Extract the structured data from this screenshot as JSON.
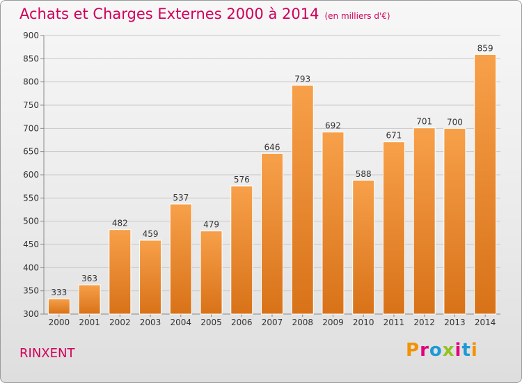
{
  "header": {
    "title": "Achats et Charges Externes 2000 à 2014",
    "subtitle": "(en milliers d'€)"
  },
  "commune": "RINXENT",
  "logo": {
    "text": "Proxiti",
    "letters": [
      {
        "ch": "P",
        "color": "#f39200"
      },
      {
        "ch": "r",
        "color": "#e2007a"
      },
      {
        "ch": "o",
        "color": "#1d9ad6"
      },
      {
        "ch": "x",
        "color": "#95c11f"
      },
      {
        "ch": "i",
        "color": "#e2007a"
      },
      {
        "ch": "t",
        "color": "#1d9ad6"
      },
      {
        "ch": "i",
        "color": "#f39200"
      }
    ]
  },
  "colors": {
    "title": "#d0005a",
    "bar_top": "#f7a04a",
    "bar_bottom": "#d87218",
    "grid": "#c8c8c8"
  },
  "chart_data": {
    "type": "bar",
    "title": "Achats et Charges Externes 2000 à 2014",
    "categories": [
      "2000",
      "2001",
      "2002",
      "2003",
      "2004",
      "2005",
      "2006",
      "2007",
      "2008",
      "2009",
      "2010",
      "2011",
      "2012",
      "2013",
      "2014"
    ],
    "values": [
      333,
      363,
      482,
      459,
      537,
      479,
      576,
      646,
      793,
      692,
      588,
      671,
      701,
      700,
      859
    ],
    "ylim": [
      300,
      900
    ],
    "yticks": [
      300,
      350,
      400,
      450,
      500,
      550,
      600,
      650,
      700,
      750,
      800,
      850,
      900
    ],
    "grid": true
  }
}
